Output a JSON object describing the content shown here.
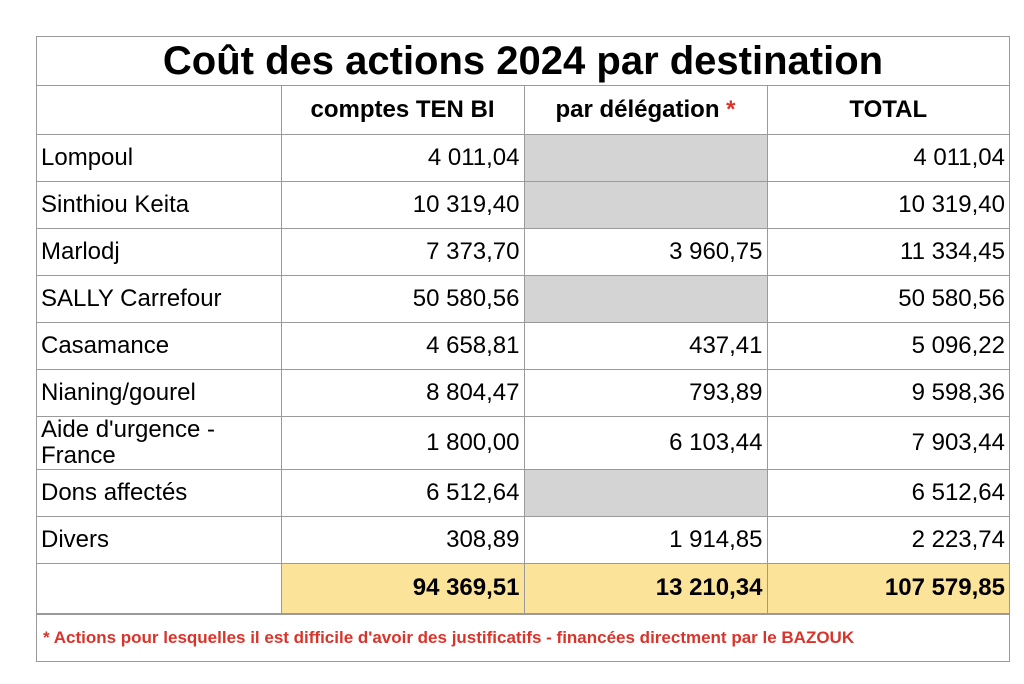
{
  "title": "Coût des actions 2024 par destination",
  "headers": {
    "label": "",
    "comptes": "comptes TEN BI",
    "delegation": "par délégation",
    "delegation_mark": "*",
    "total": "TOTAL"
  },
  "rows": [
    {
      "label": "Lompoul",
      "comptes": "4 011,04",
      "delegation": "",
      "total": "4 011,04"
    },
    {
      "label": "Sinthiou Keita",
      "comptes": "10 319,40",
      "delegation": "",
      "total": "10 319,40"
    },
    {
      "label": "Marlodj",
      "comptes": "7 373,70",
      "delegation": "3 960,75",
      "total": "11 334,45"
    },
    {
      "label": "SALLY Carrefour",
      "comptes": "50 580,56",
      "delegation": "",
      "total": "50 580,56"
    },
    {
      "label": "Casamance",
      "comptes": "4 658,81",
      "delegation": "437,41",
      "total": "5 096,22"
    },
    {
      "label": "Nianing/gourel",
      "comptes": "8 804,47",
      "delegation": "793,89",
      "total": "9 598,36"
    },
    {
      "label": "Aide d'urgence - France",
      "comptes": "1 800,00",
      "delegation": "6 103,44",
      "total": "7 903,44"
    },
    {
      "label": "Dons affectés",
      "comptes": "6 512,64",
      "delegation": "",
      "total": "6 512,64"
    },
    {
      "label": "Divers",
      "comptes": "308,89",
      "delegation": "1 914,85",
      "total": "2 223,74"
    }
  ],
  "totals": {
    "comptes": "94 369,51",
    "delegation": "13 210,34",
    "total": "107 579,85"
  },
  "footnote": "* Actions pour lesquelles il est difficile d'avoir des justificatifs - financées directment par le BAZOUK",
  "colors": {
    "highlight": "#fbe49a",
    "empty_cell": "#d4d4d4",
    "accent_red": "#d9342b"
  }
}
